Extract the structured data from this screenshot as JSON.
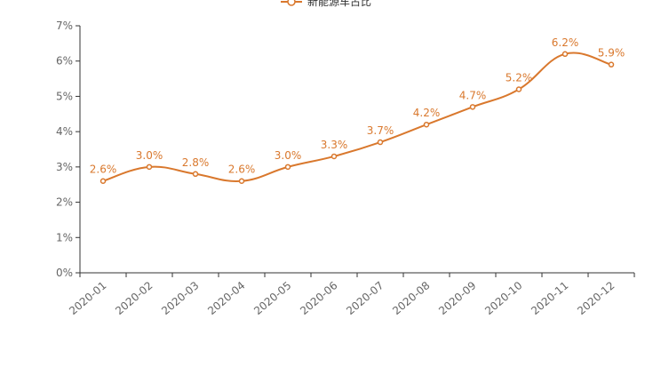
{
  "chart_data": {
    "type": "line",
    "title": "",
    "xlabel": "",
    "ylabel": "",
    "categories": [
      "2020-01",
      "2020-02",
      "2020-03",
      "2020-04",
      "2020-05",
      "2020-06",
      "2020-07",
      "2020-08",
      "2020-09",
      "2020-10",
      "2020-11",
      "2020-12"
    ],
    "series": [
      {
        "name": "新能源车占比",
        "values": [
          2.6,
          3.0,
          2.8,
          2.6,
          3.0,
          3.3,
          3.7,
          4.2,
          4.7,
          5.2,
          6.2,
          5.9
        ],
        "data_labels": [
          "2.6%",
          "3.0%",
          "2.8%",
          "2.6%",
          "3.0%",
          "3.3%",
          "3.7%",
          "4.2%",
          "4.7%",
          "5.2%",
          "6.2%",
          "5.9%"
        ]
      }
    ],
    "ylim": [
      0,
      7
    ],
    "y_ticks": [
      0,
      1,
      2,
      3,
      4,
      5,
      6,
      7
    ],
    "y_tick_labels": [
      "0%",
      "1%",
      "2%",
      "3%",
      "4%",
      "5%",
      "6%",
      "7%"
    ],
    "grid": false,
    "smooth": true,
    "legend_position": "top-center",
    "line_color": "#d9782d",
    "axis_color": "#333333",
    "tick_label_color": "#666666"
  }
}
